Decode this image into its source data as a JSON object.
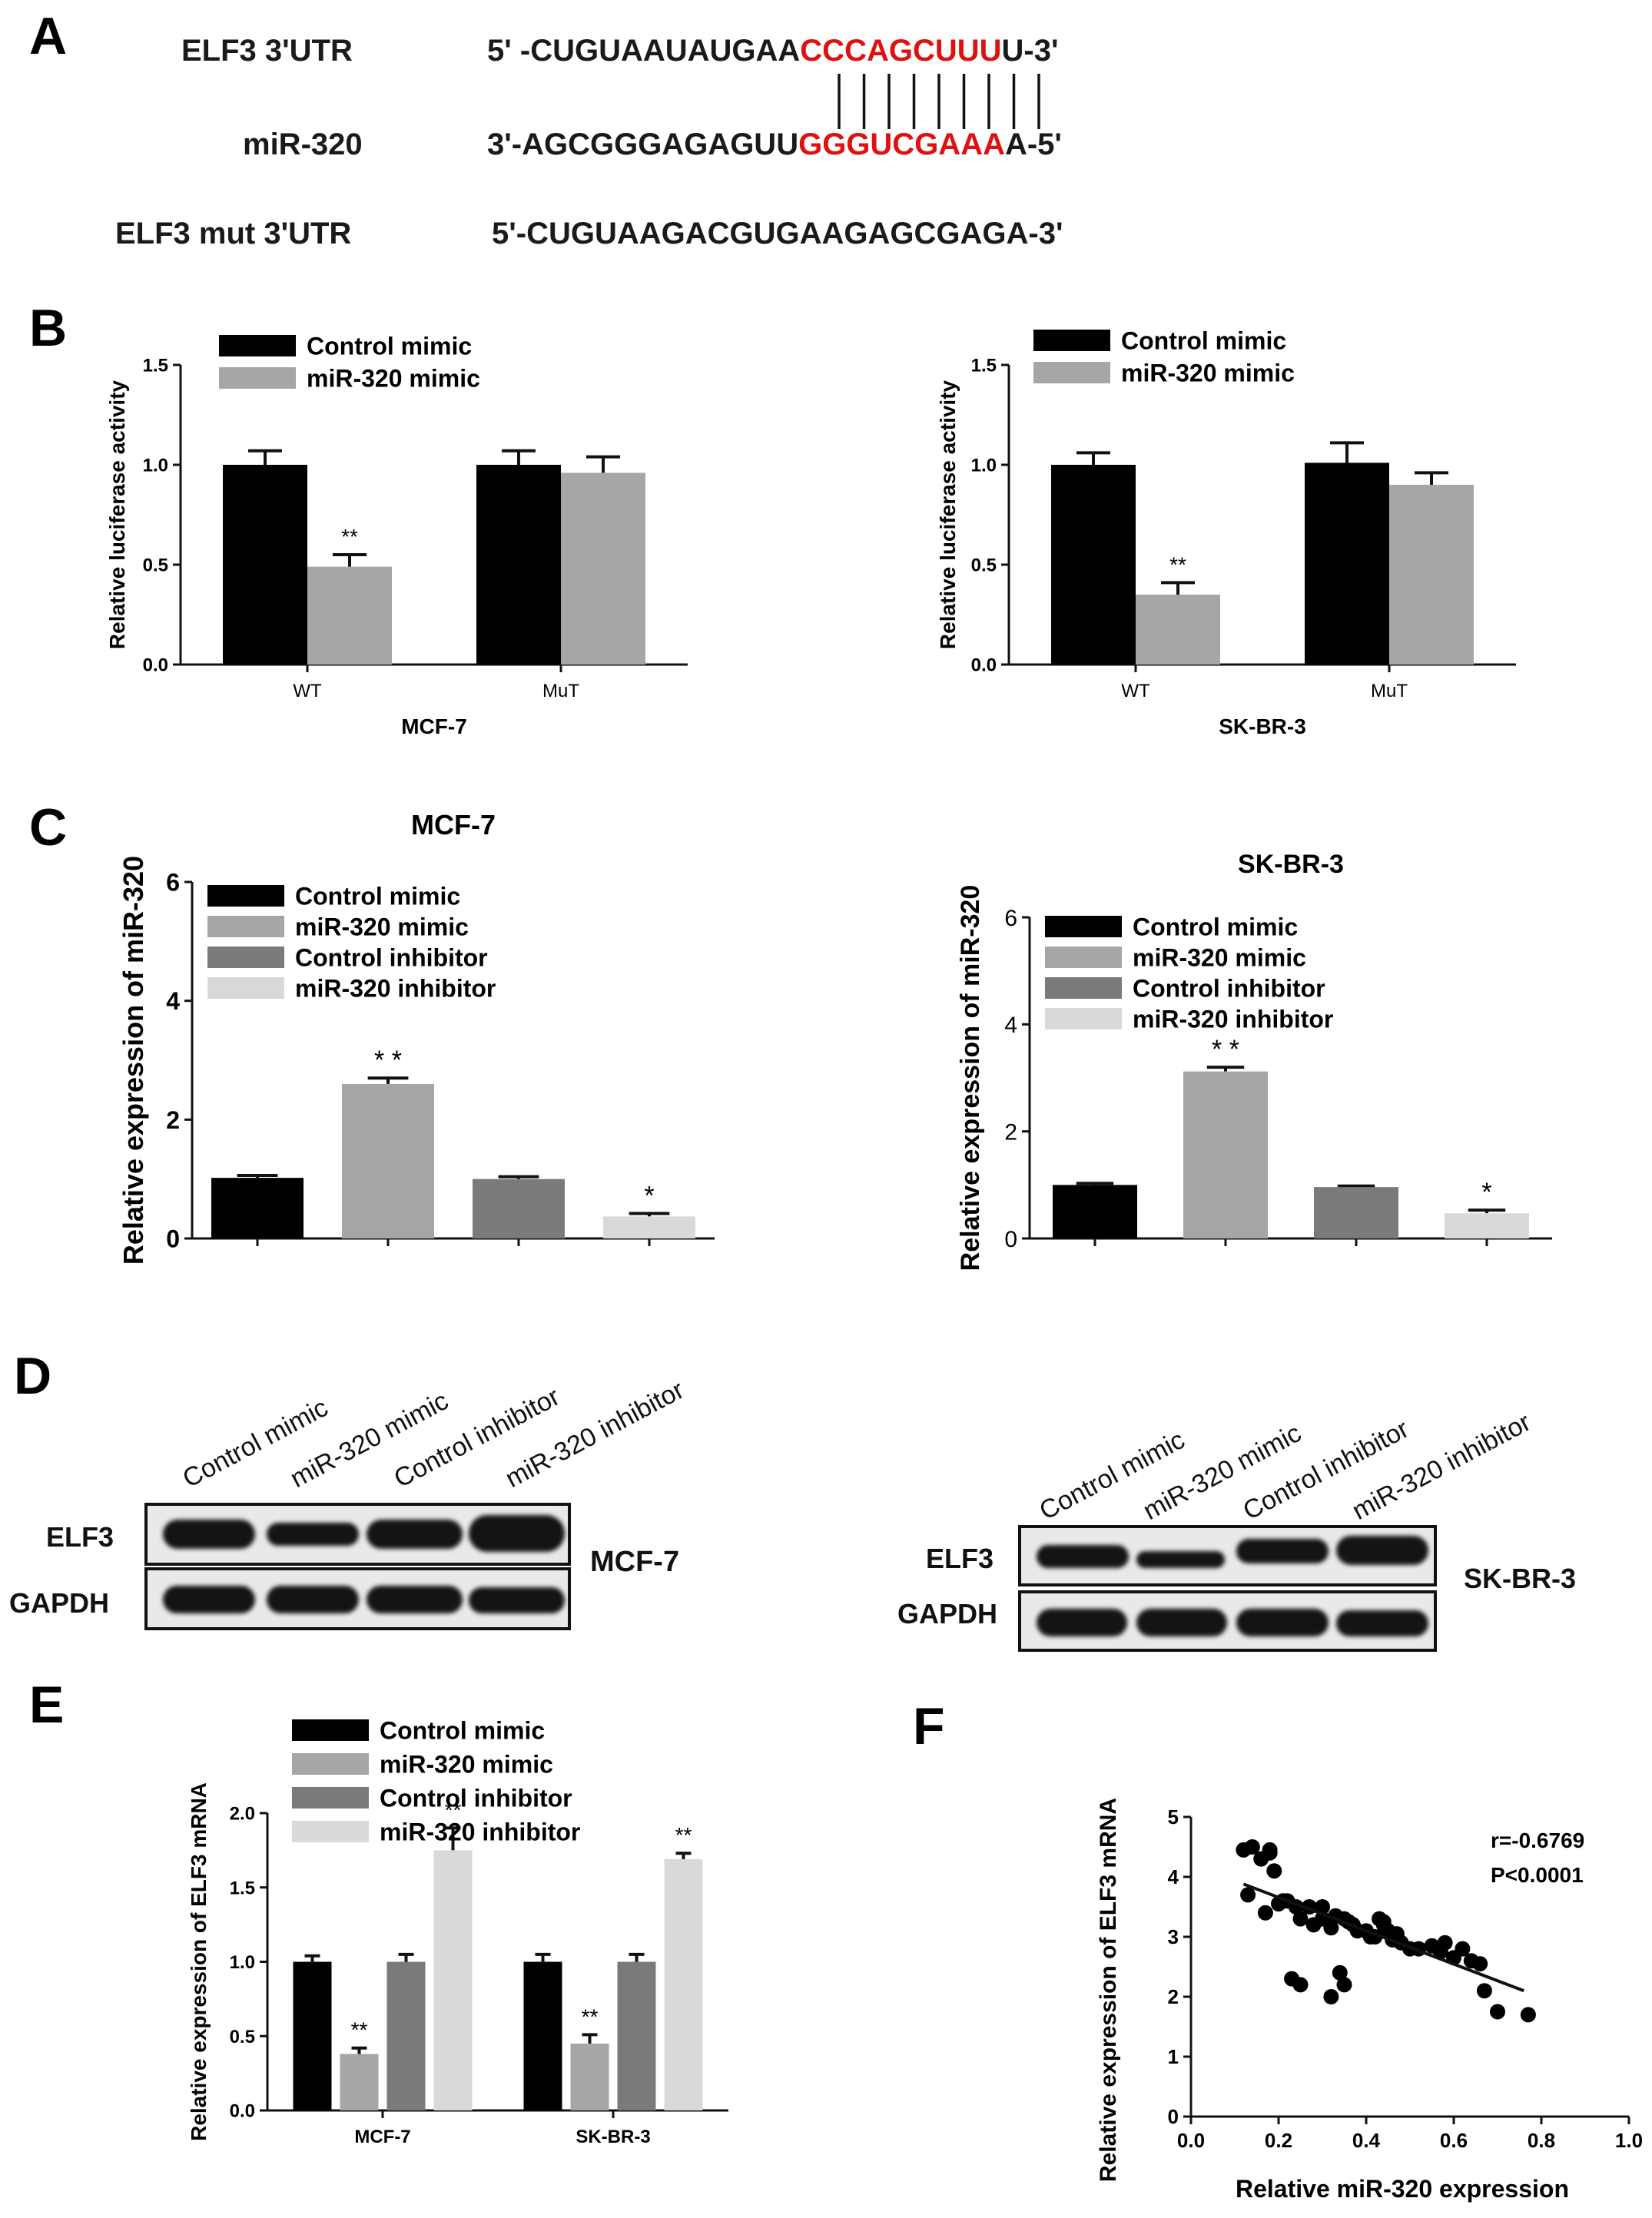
{
  "panel_labels": {
    "a": "A",
    "b": "B",
    "c": "C",
    "d": "D",
    "e": "E",
    "f": "F"
  },
  "panelA": {
    "rows": [
      {
        "label": "ELF3 3'UTR",
        "prefix": "5' -CUGUAAUAUGAA",
        "highlight": "CCCAGCUUU",
        "suffix": "U-3'"
      },
      {
        "label": "miR-320",
        "prefix": "3'-AGCGGGAGAGUU",
        "highlight": "GGGUCGAAA",
        "suffix": "A-5'"
      },
      {
        "label": "ELF3 mut 3'UTR",
        "prefix": "5'-CUGUAAGACGUGAAGAGCGAGA-3'",
        "highlight": "",
        "suffix": ""
      }
    ],
    "pair_lines": 9,
    "highlight_color": "#e01010"
  },
  "colors": {
    "control_mimic": "#000000",
    "mir_mimic": "#a6a6a6",
    "control_inhibitor": "#7a7a7a",
    "mir_inhibitor": "#d9d9d9"
  },
  "chart_data": [
    {
      "id": "B-MCF7",
      "type": "bar",
      "ylabel": "Relative luciferase activity",
      "xlabel": "MCF-7",
      "ylim": [
        0,
        1.5
      ],
      "yticks": [
        "0.0",
        "0.5",
        "1.0",
        "1.5"
      ],
      "categories": [
        "WT",
        "MuT"
      ],
      "series": [
        {
          "name": "Control mimic",
          "values": [
            1.0,
            1.0
          ],
          "errors": [
            0.07,
            0.07
          ],
          "color": "#000000"
        },
        {
          "name": "miR-320 mimic",
          "values": [
            0.49,
            0.96
          ],
          "errors": [
            0.06,
            0.08
          ],
          "color": "#a6a6a6"
        }
      ],
      "annotations": [
        {
          "category": 0,
          "series": 1,
          "text": "**"
        }
      ],
      "legend": "top-left"
    },
    {
      "id": "B-SKBR3",
      "type": "bar",
      "ylabel": "Relative luciferase activity",
      "xlabel": "SK-BR-3",
      "ylim": [
        0,
        1.5
      ],
      "yticks": [
        "0.0",
        "0.5",
        "1.0",
        "1.5"
      ],
      "categories": [
        "WT",
        "MuT"
      ],
      "series": [
        {
          "name": "Control mimic",
          "values": [
            1.0,
            1.01
          ],
          "errors": [
            0.06,
            0.1
          ],
          "color": "#000000"
        },
        {
          "name": "miR-320 mimic",
          "values": [
            0.35,
            0.9
          ],
          "errors": [
            0.06,
            0.06
          ],
          "color": "#a6a6a6"
        }
      ],
      "annotations": [
        {
          "category": 0,
          "series": 1,
          "text": "**"
        }
      ],
      "legend": "top-left"
    },
    {
      "id": "C-MCF7",
      "type": "bar",
      "title": "MCF-7",
      "ylabel": "Relative expression of miR-320",
      "ylim": [
        0,
        6
      ],
      "yticks": [
        "0",
        "2",
        "4",
        "6"
      ],
      "categories": [
        "Control mimic",
        "miR-320 mimic",
        "Control inhibitor",
        "miR-320 inhibitor"
      ],
      "values": [
        1.02,
        2.6,
        1.0,
        0.37
      ],
      "errors": [
        0.04,
        0.1,
        0.04,
        0.05
      ],
      "colors": [
        "#000000",
        "#a6a6a6",
        "#7a7a7a",
        "#d9d9d9"
      ],
      "annotations": [
        {
          "index": 1,
          "text": "* *"
        },
        {
          "index": 3,
          "text": "*"
        }
      ],
      "legend": "top-left"
    },
    {
      "id": "C-SKBR3",
      "type": "bar",
      "title": "SK-BR-3",
      "ylabel": "Relative expression of miR-320",
      "ylim": [
        0,
        6
      ],
      "yticks": [
        "0",
        "2",
        "4",
        "6"
      ],
      "categories": [
        "Control mimic",
        "miR-320 mimic",
        "Control inhibitor",
        "miR-320 inhibitor"
      ],
      "values": [
        1.0,
        3.12,
        0.96,
        0.47
      ],
      "errors": [
        0.03,
        0.08,
        0.02,
        0.06
      ],
      "colors": [
        "#000000",
        "#a6a6a6",
        "#7a7a7a",
        "#d9d9d9"
      ],
      "annotations": [
        {
          "index": 1,
          "text": "* *"
        },
        {
          "index": 3,
          "text": "*"
        }
      ],
      "legend": "top-left"
    },
    {
      "id": "E",
      "type": "bar",
      "ylabel": "Relative expression of ELF3 mRNA",
      "ylim": [
        0,
        2.0
      ],
      "yticks": [
        "0.0",
        "0.5",
        "1.0",
        "1.5",
        "2.0"
      ],
      "categories": [
        "MCF-7",
        "SK-BR-3"
      ],
      "series": [
        {
          "name": "Control mimic",
          "values": [
            1.0,
            1.0
          ],
          "errors": [
            0.04,
            0.05
          ],
          "color": "#000000"
        },
        {
          "name": "miR-320 mimic",
          "values": [
            0.38,
            0.45
          ],
          "errors": [
            0.04,
            0.06
          ],
          "color": "#a6a6a6"
        },
        {
          "name": "Control inhibitor",
          "values": [
            1.0,
            1.0
          ],
          "errors": [
            0.05,
            0.05
          ],
          "color": "#7a7a7a"
        },
        {
          "name": "miR-320 inhibitor",
          "values": [
            1.75,
            1.69
          ],
          "errors": [
            0.15,
            0.04
          ],
          "color": "#d9d9d9"
        }
      ],
      "annotations": [
        {
          "category": 0,
          "series": 1,
          "text": "**"
        },
        {
          "category": 0,
          "series": 3,
          "text": "**"
        },
        {
          "category": 1,
          "series": 1,
          "text": "**"
        },
        {
          "category": 1,
          "series": 3,
          "text": "**"
        }
      ],
      "legend": "top-left"
    },
    {
      "id": "F",
      "type": "scatter",
      "xlabel": "Relative miR-320 expression",
      "ylabel": "Relative expression of ELF3 mRNA",
      "xlim": [
        0,
        1.0
      ],
      "ylim": [
        0,
        5
      ],
      "xticks": [
        "0.0",
        "0.2",
        "0.4",
        "0.6",
        "0.8",
        "1.0"
      ],
      "yticks": [
        "0",
        "1",
        "2",
        "3",
        "4",
        "5"
      ],
      "annotations": [
        "r=-0.6769",
        "P<0.0001"
      ],
      "fit": {
        "x": [
          0.12,
          0.76
        ],
        "y": [
          3.88,
          2.1
        ]
      },
      "x": [
        0.12,
        0.14,
        0.16,
        0.18,
        0.13,
        0.19,
        0.2,
        0.22,
        0.17,
        0.24,
        0.25,
        0.27,
        0.28,
        0.3,
        0.32,
        0.33,
        0.35,
        0.36,
        0.37,
        0.38,
        0.4,
        0.41,
        0.42,
        0.43,
        0.44,
        0.45,
        0.46,
        0.47,
        0.48,
        0.5,
        0.52,
        0.55,
        0.57,
        0.58,
        0.6,
        0.62,
        0.64,
        0.66,
        0.67,
        0.7,
        0.77,
        0.23,
        0.25,
        0.32,
        0.34,
        0.35,
        0.18,
        0.21,
        0.3,
        0.44
      ],
      "y": [
        4.45,
        4.5,
        4.3,
        4.4,
        3.7,
        4.1,
        3.55,
        3.6,
        3.4,
        3.5,
        3.3,
        3.5,
        3.2,
        3.3,
        3.15,
        3.35,
        3.3,
        3.25,
        3.2,
        3.1,
        3.1,
        3.0,
        3.0,
        3.3,
        3.2,
        3.1,
        2.95,
        3.05,
        2.9,
        2.8,
        2.8,
        2.85,
        2.75,
        2.9,
        2.65,
        2.8,
        2.6,
        2.55,
        2.1,
        1.75,
        1.7,
        2.3,
        2.2,
        2.0,
        2.4,
        2.2,
        4.45,
        3.6,
        3.5,
        3.25
      ]
    }
  ],
  "blots": {
    "left": {
      "columns": [
        "Control mimic",
        "miR-320 mimic",
        "Control inhibitor",
        "miR-320 inhibitor"
      ],
      "rows": [
        "ELF3",
        "GAPDH"
      ],
      "cell_line": "MCF-7"
    },
    "right": {
      "columns": [
        "Control mimic",
        "miR-320 mimic",
        "Control inhibitor",
        "miR-320 inhibitor"
      ],
      "rows": [
        "ELF3",
        "GAPDH"
      ],
      "cell_line": "SK-BR-3"
    }
  }
}
